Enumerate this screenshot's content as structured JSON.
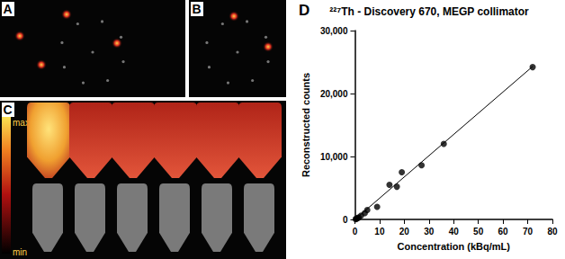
{
  "panels": {
    "A": {
      "label": "A"
    },
    "B": {
      "label": "B"
    },
    "C": {
      "label": "C",
      "colorbar": {
        "max_label": "max",
        "min_label": "min"
      }
    },
    "D": {
      "label": "D"
    }
  },
  "chart_data": {
    "type": "scatter",
    "title": "²²⁷Th - Discovery 670, MEGP collimator",
    "x_label": "Concentration (kBq/mL)",
    "y_label": "Reconstructed counts",
    "x": [
      0.3,
      0.6,
      1,
      1.5,
      2.5,
      4,
      5,
      9,
      14,
      17,
      19,
      27,
      36,
      72
    ],
    "values": [
      50,
      100,
      200,
      300,
      600,
      1000,
      1500,
      2000,
      5500,
      5200,
      7500,
      8600,
      12000,
      24200
    ],
    "fit_line": {
      "x": [
        0,
        72
      ],
      "values": [
        0,
        24300
      ]
    },
    "color": "#000000",
    "xlim": [
      0,
      80
    ],
    "xticks": [
      0,
      10,
      20,
      30,
      40,
      50,
      60,
      70,
      80
    ],
    "ylim": [
      0,
      30000
    ],
    "yticks": [
      0,
      10000,
      20000,
      30000
    ],
    "grid": false
  }
}
